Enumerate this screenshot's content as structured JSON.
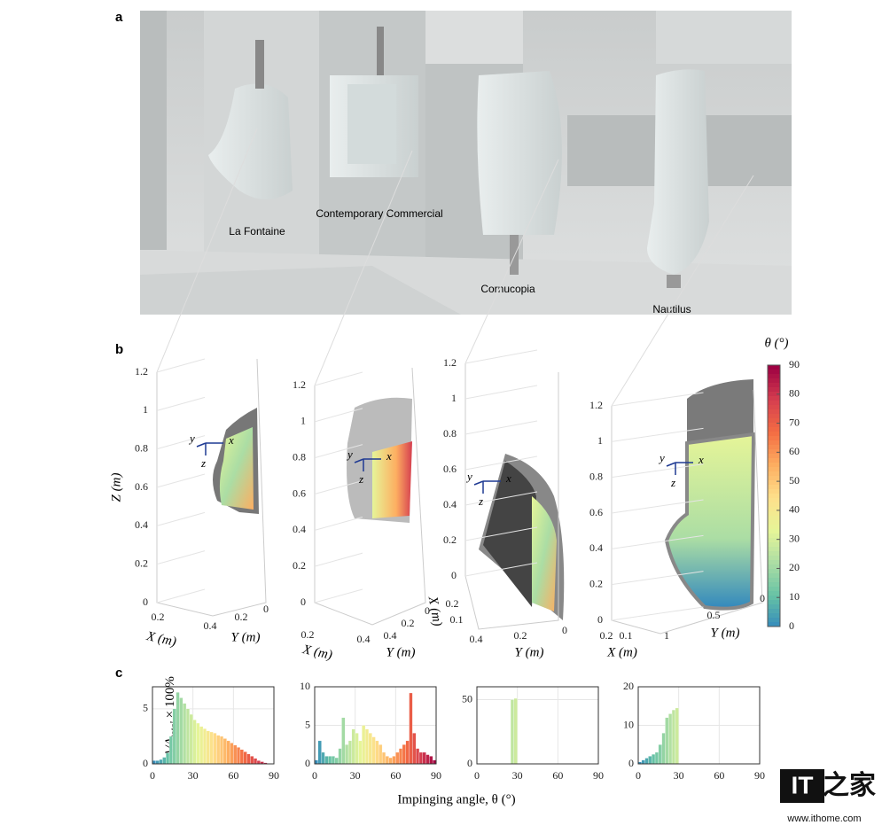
{
  "panel_labels": [
    "a",
    "b",
    "c"
  ],
  "panel_a": {
    "labels": [
      "La Fontaine",
      "Contemporary Commercial",
      "Cornucopia",
      "Nautilus"
    ]
  },
  "colormap": [
    "#3288bd",
    "#66c2a5",
    "#abdda4",
    "#e6f598",
    "#fee08b",
    "#fdae61",
    "#f46d43",
    "#d53e4f",
    "#9e0142"
  ],
  "panel_b": {
    "colorbar": {
      "title": "θ (°)",
      "lim": [
        0,
        90
      ],
      "ticks": [
        0,
        10,
        20,
        30,
        40,
        50,
        60,
        70,
        80,
        90
      ]
    },
    "triad": [
      "x",
      "y",
      "z"
    ],
    "plots": [
      {
        "zlim": [
          0,
          1.2
        ],
        "zticks": [
          0,
          0.2,
          0.4,
          0.6,
          0.8,
          1,
          1.2
        ],
        "xticks": [
          0.2,
          0.4
        ],
        "yticks": [
          0.2,
          0
        ],
        "xlabel": "X (m)",
        "ylabel": "Y (m)",
        "zlabel": "Z (m)"
      },
      {
        "zlim": [
          0,
          1.2
        ],
        "zticks": [
          0,
          0.2,
          0.4,
          0.6,
          0.8,
          1,
          1.2
        ],
        "xticks": [
          0.2,
          0.4
        ],
        "yticks": [
          0.4,
          0.2,
          0
        ],
        "xlabel": "X (m)",
        "ylabel": "Y (m)"
      },
      {
        "zlim": [
          0,
          1.2
        ],
        "zticks": [
          0,
          0.2,
          0.4,
          0.6,
          0.8,
          1,
          1.2
        ],
        "xticks": [
          0.2,
          0.1
        ],
        "yticks": [
          0.4,
          0.2,
          0
        ],
        "xlabel": "X (m)",
        "ylabel": "Y (m)"
      },
      {
        "zlim": [
          0,
          1.2
        ],
        "zticks": [
          0,
          0.2,
          0.4,
          0.6,
          0.8,
          1,
          1.2
        ],
        "xticks": [
          0.2,
          0.1
        ],
        "yticks": [
          1,
          0.5,
          0
        ],
        "xlabel": "X (m)",
        "ylabel": "Y (m)"
      }
    ]
  },
  "panel_c": {
    "ylabel": "A/A",
    "ylabel_sub": "total",
    "ylabel_suffix": " × 100%",
    "xlabel": "Impinging angle, θ (°)",
    "xlim": [
      0,
      90
    ],
    "xticks": [
      0,
      30,
      60,
      90
    ],
    "grid": true,
    "charts": [
      {
        "type": "histogram",
        "ylim": [
          0,
          7
        ],
        "yticks": [
          0,
          5
        ],
        "bins": [
          0,
          2.5,
          5,
          7.5,
          10,
          12.5,
          15,
          17.5,
          20,
          22.5,
          25,
          27.5,
          30,
          32.5,
          35,
          37.5,
          40,
          42.5,
          45,
          47.5,
          50,
          52.5,
          55,
          57.5,
          60,
          62.5,
          65,
          67.5,
          70,
          72.5,
          75,
          77.5,
          80,
          82.5,
          85,
          87.5,
          90
        ],
        "counts": [
          0.3,
          0.3,
          0.4,
          0.6,
          1.0,
          2.5,
          5,
          6.5,
          6,
          5.5,
          5,
          4.5,
          4,
          3.7,
          3.4,
          3.2,
          3,
          2.9,
          2.8,
          2.6,
          2.5,
          2.3,
          2.1,
          1.9,
          1.7,
          1.5,
          1.3,
          1.1,
          0.9,
          0.7,
          0.5,
          0.3,
          0.2,
          0.1,
          0,
          0
        ]
      },
      {
        "type": "histogram",
        "ylim": [
          0,
          10
        ],
        "yticks": [
          0,
          5,
          10
        ],
        "bins": [
          0,
          2.5,
          5,
          7.5,
          10,
          12.5,
          15,
          17.5,
          20,
          22.5,
          25,
          27.5,
          30,
          32.5,
          35,
          37.5,
          40,
          42.5,
          45,
          47.5,
          50,
          52.5,
          55,
          57.5,
          60,
          62.5,
          65,
          67.5,
          70,
          72.5,
          75,
          77.5,
          80,
          82.5,
          85,
          87.5,
          90
        ],
        "counts": [
          0.5,
          3,
          1.5,
          1,
          1,
          1,
          0.8,
          2,
          6,
          2.5,
          3,
          4.5,
          4,
          3,
          5,
          4.5,
          4,
          3.5,
          3,
          2.5,
          1.5,
          1,
          0.8,
          1,
          1.5,
          2,
          2.5,
          3,
          9.2,
          4,
          2,
          1.5,
          1.5,
          1.2,
          1,
          0.5
        ]
      },
      {
        "type": "histogram",
        "ylim": [
          0,
          60
        ],
        "yticks": [
          0,
          50
        ],
        "bins": [
          25,
          27.5,
          30
        ],
        "counts": [
          50,
          51
        ]
      },
      {
        "type": "histogram",
        "ylim": [
          0,
          20
        ],
        "yticks": [
          0,
          10,
          20
        ],
        "bins": [
          0,
          2.5,
          5,
          7.5,
          10,
          12.5,
          15,
          17.5,
          20,
          22.5,
          25,
          27.5,
          30
        ],
        "counts": [
          0.5,
          1,
          1.5,
          2,
          2.5,
          3,
          5,
          8,
          12,
          13,
          14,
          14.5
        ]
      }
    ]
  },
  "watermark": {
    "logo_a": "IT",
    "logo_b": "之家",
    "url": "www.ithome.com"
  }
}
